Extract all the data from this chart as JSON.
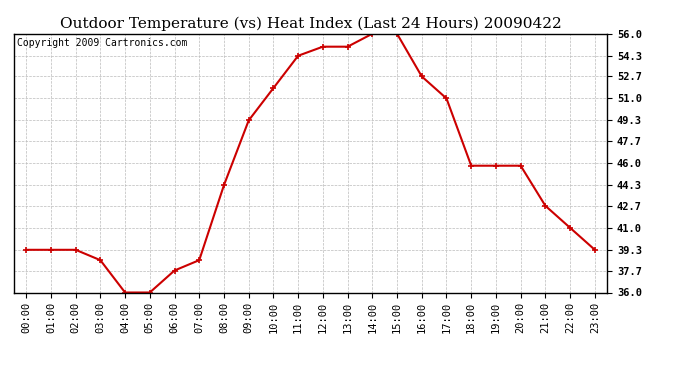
{
  "title": "Outdoor Temperature (vs) Heat Index (Last 24 Hours) 20090422",
  "copyright": "Copyright 2009 Cartronics.com",
  "x_labels": [
    "00:00",
    "01:00",
    "02:00",
    "03:00",
    "04:00",
    "05:00",
    "06:00",
    "07:00",
    "08:00",
    "09:00",
    "10:00",
    "11:00",
    "12:00",
    "13:00",
    "14:00",
    "15:00",
    "16:00",
    "17:00",
    "18:00",
    "19:00",
    "20:00",
    "21:00",
    "22:00",
    "23:00"
  ],
  "y_values": [
    39.3,
    39.3,
    39.3,
    38.5,
    36.0,
    36.0,
    37.7,
    38.5,
    44.3,
    49.3,
    51.8,
    54.3,
    55.0,
    55.0,
    56.0,
    56.0,
    52.7,
    51.0,
    45.8,
    45.8,
    45.8,
    42.7,
    41.0,
    39.3
  ],
  "line_color": "#cc0000",
  "marker": "+",
  "marker_size": 5,
  "marker_color": "#cc0000",
  "bg_color": "#ffffff",
  "plot_bg_color": "#ffffff",
  "grid_color": "#bbbbbb",
  "ylim": [
    36.0,
    56.0
  ],
  "yticks": [
    36.0,
    37.7,
    39.3,
    41.0,
    42.7,
    44.3,
    46.0,
    47.7,
    49.3,
    51.0,
    52.7,
    54.3,
    56.0
  ],
  "title_fontsize": 11,
  "copyright_fontsize": 7,
  "tick_fontsize": 7.5,
  "line_width": 1.5
}
